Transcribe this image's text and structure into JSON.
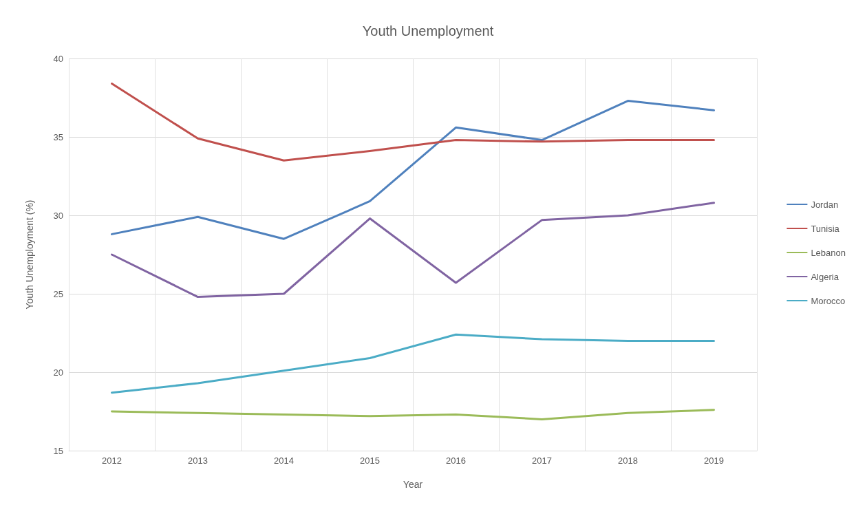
{
  "chart_data": {
    "type": "line",
    "title": "Youth Unemployment",
    "xlabel": "Year",
    "ylabel": "Youth Unemployment (%)",
    "categories": [
      "2012",
      "2013",
      "2014",
      "2015",
      "2016",
      "2017",
      "2018",
      "2019"
    ],
    "series": [
      {
        "name": "Jordan",
        "color": "#4f81bd",
        "values": [
          28.8,
          29.9,
          28.5,
          30.9,
          35.6,
          34.8,
          37.3,
          36.7
        ]
      },
      {
        "name": "Tunisia",
        "color": "#c0504d",
        "values": [
          38.4,
          34.9,
          33.5,
          34.1,
          34.8,
          34.7,
          34.8,
          34.8
        ]
      },
      {
        "name": "Lebanon",
        "color": "#9bbb59",
        "values": [
          17.5,
          17.4,
          17.3,
          17.2,
          17.3,
          17.0,
          17.4,
          17.6
        ]
      },
      {
        "name": "Algeria",
        "color": "#8064a2",
        "values": [
          27.5,
          24.8,
          25.0,
          29.8,
          25.7,
          29.7,
          30.0,
          30.8
        ]
      },
      {
        "name": "Morocco",
        "color": "#4bacc6",
        "values": [
          18.7,
          19.3,
          20.1,
          20.9,
          22.4,
          22.1,
          22.0,
          22.0
        ]
      }
    ],
    "ylim": [
      15,
      40
    ],
    "yticks": [
      15,
      20,
      25,
      30,
      35,
      40
    ],
    "grid": true,
    "legend": "right",
    "marker": "none",
    "line_style": "solid"
  }
}
